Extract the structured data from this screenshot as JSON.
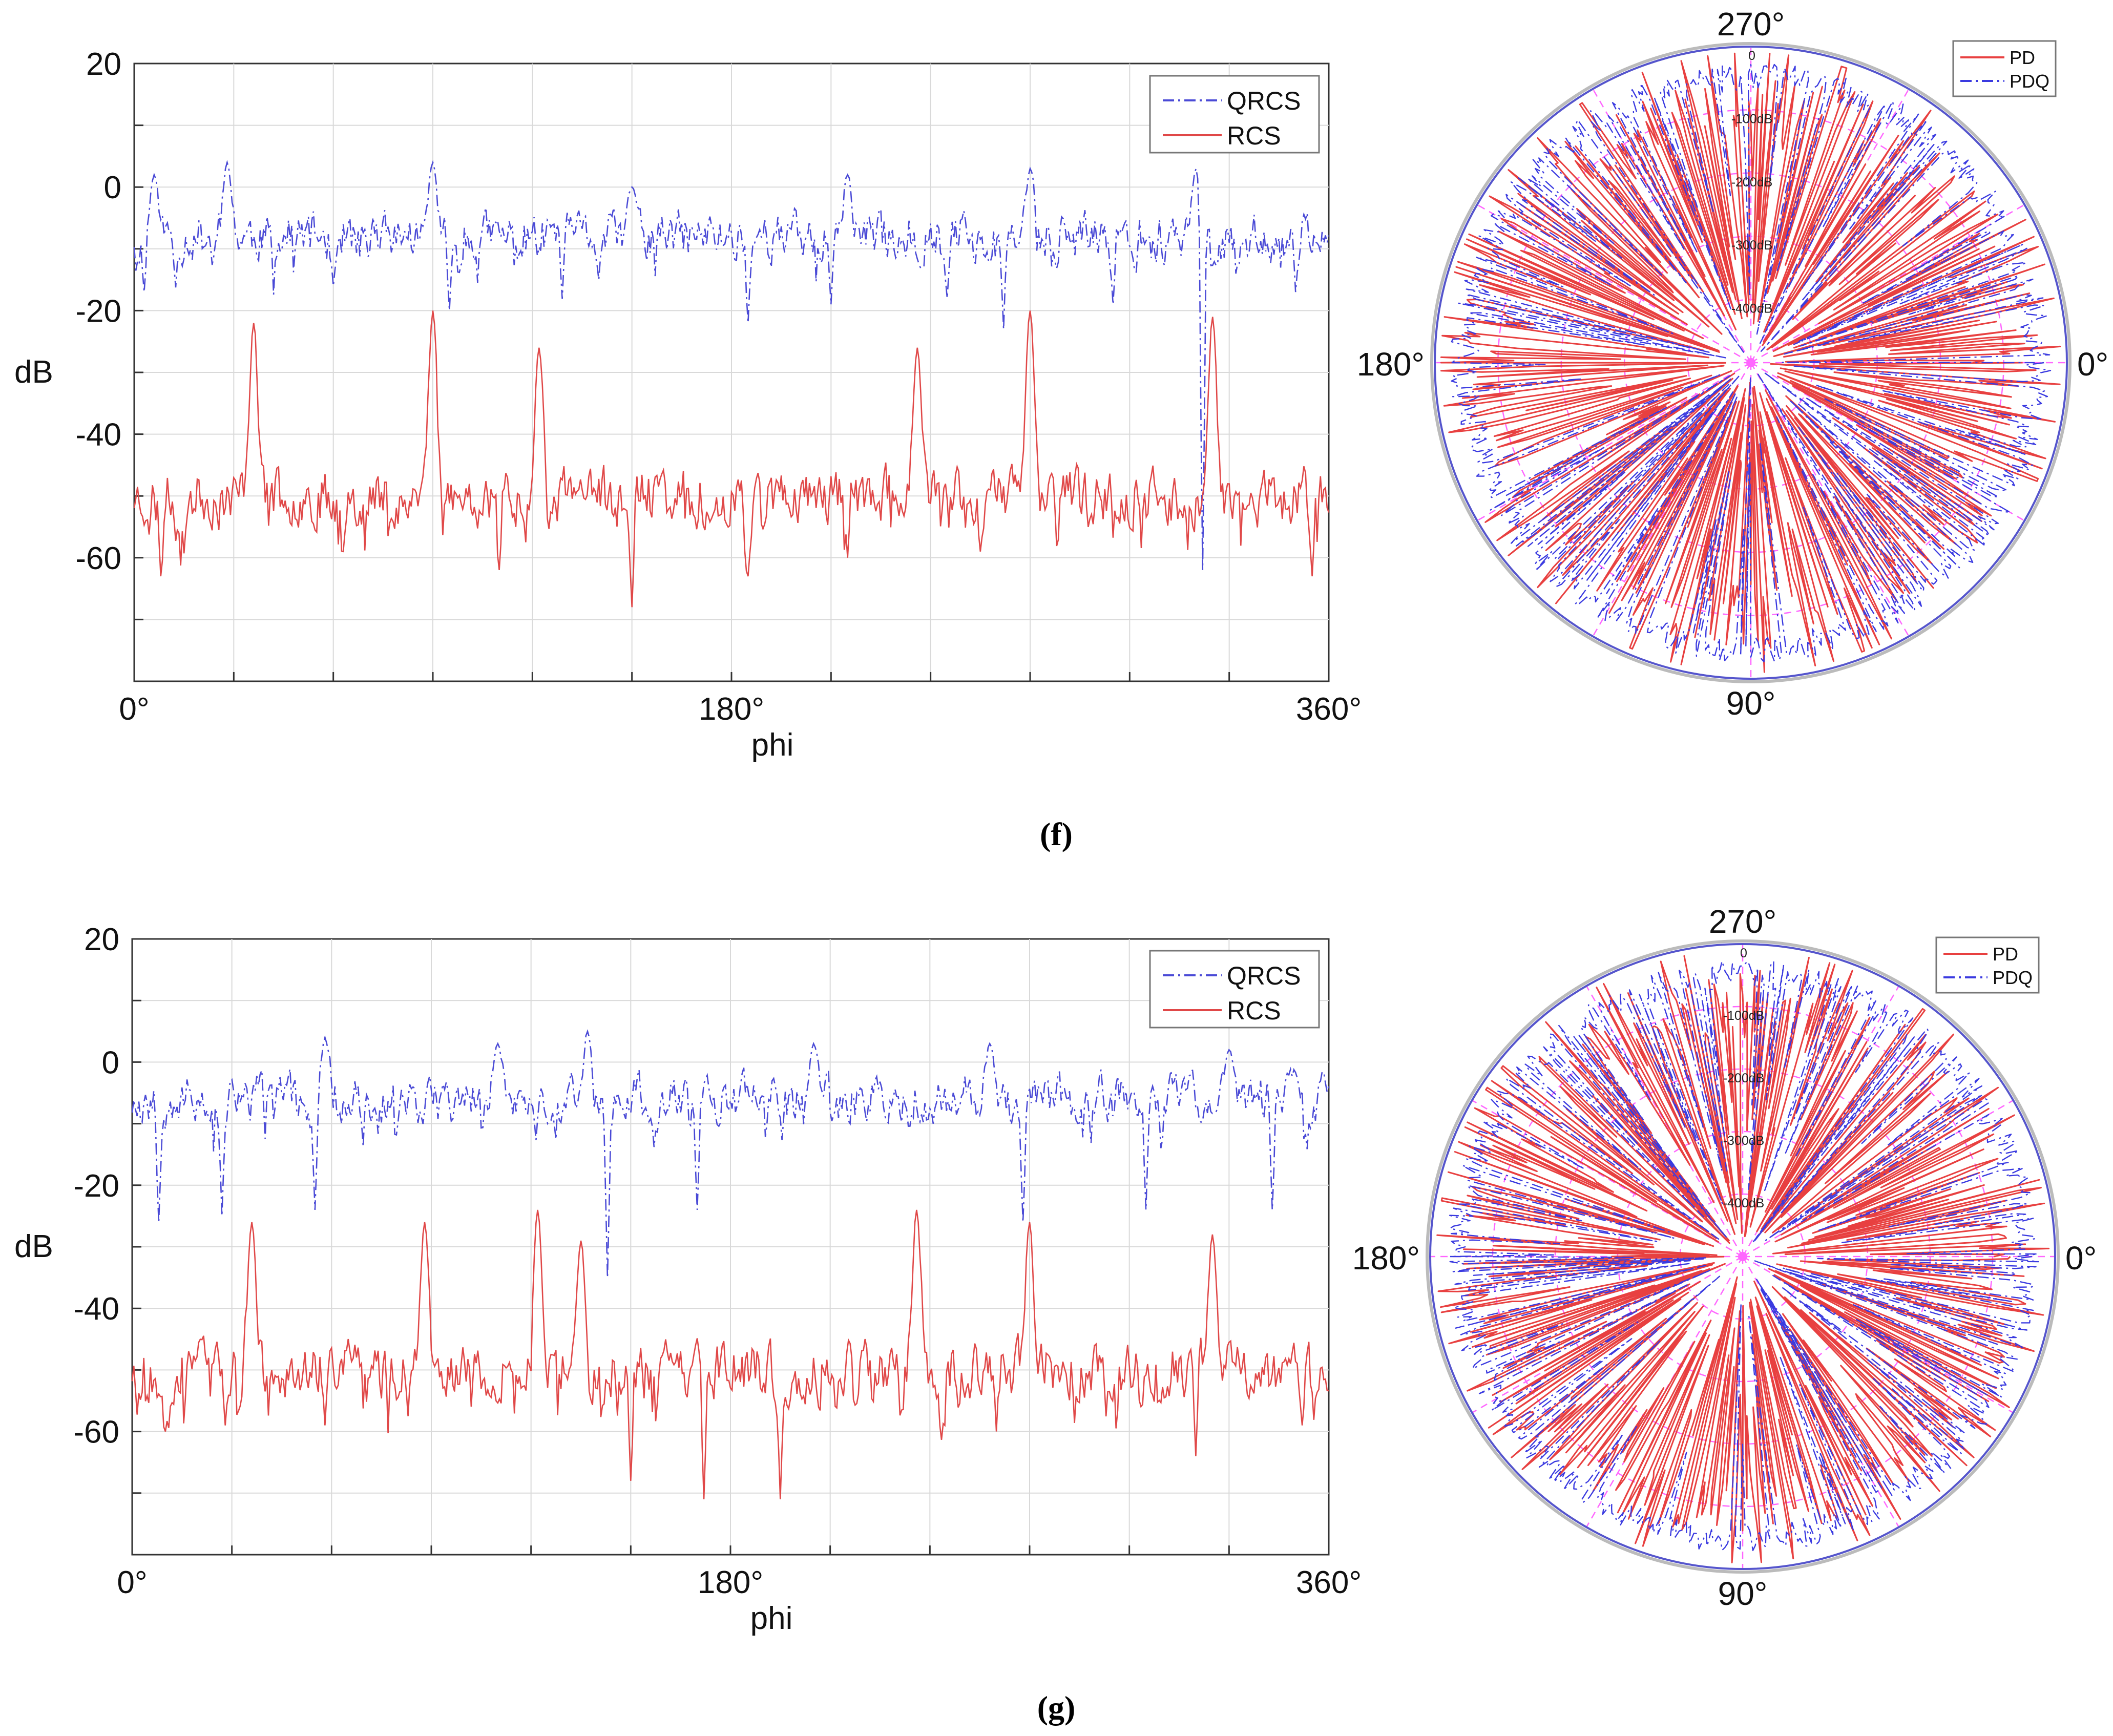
{
  "colors": {
    "qrcs": "#4a4ad6",
    "rcs": "#e04848",
    "pd": "#e84040",
    "pdq": "#3a3ae0",
    "grid": "#d9d9d9",
    "polar_grid": "#ff66ff",
    "axis": "#333333"
  },
  "panels": [
    {
      "caption": "(f)",
      "chart_data": [
        {
          "type": "line",
          "xlabel": "phi",
          "ylabel": "dB",
          "xlim": [
            0,
            360
          ],
          "ylim": [
            -80,
            20
          ],
          "x_ticks": [
            0,
            180,
            360
          ],
          "x_tick_labels": [
            "0°",
            "180°",
            "360°"
          ],
          "y_ticks": [
            20,
            0,
            -20,
            -40,
            -60
          ],
          "y_tick_labels": [
            "20",
            "0",
            "-20",
            "-40",
            "-60"
          ],
          "x_grid_step": 30,
          "y_grid_step": 10,
          "grid": true,
          "legend_position": "top-right",
          "series": [
            {
              "name": "QRCS",
              "style": "dashdot",
              "color_key": "qrcs",
              "seed": 11,
              "base": -8,
              "spread": 6,
              "dips": [
                [
                  3,
                  -17
                ],
                [
                  60,
                  -16
                ],
                [
                  95,
                  -20
                ],
                [
                  140,
                  -15
                ],
                [
                  185,
                  -22
                ],
                [
                  210,
                  -19
                ],
                [
                  245,
                  -18
                ],
                [
                  262,
                  -23
                ],
                [
                  295,
                  -19
                ],
                [
                  322,
                  -62
                ],
                [
                  350,
                  -17
                ]
              ],
              "peaks": [
                [
                  6,
                  2
                ],
                [
                  28,
                  4
                ],
                [
                  90,
                  4
                ],
                [
                  150,
                  0
                ],
                [
                  215,
                  2
                ],
                [
                  270,
                  3
                ],
                [
                  320,
                  3
                ]
              ]
            },
            {
              "name": "RCS",
              "style": "solid",
              "color_key": "rcs",
              "seed": 23,
              "base": -50,
              "spread": 7,
              "dips": [
                [
                  8,
                  -63
                ],
                [
                  63,
                  -59
                ],
                [
                  110,
                  -62
                ],
                [
                  150,
                  -68
                ],
                [
                  185,
                  -63
                ],
                [
                  215,
                  -60
                ],
                [
                  255,
                  -59
                ],
                [
                  355,
                  -63
                ]
              ],
              "peaks": [
                [
                  36,
                  -22
                ],
                [
                  90,
                  -20
                ],
                [
                  122,
                  -26
                ],
                [
                  236,
                  -26
                ],
                [
                  270,
                  -20
                ],
                [
                  325,
                  -21
                ]
              ]
            }
          ]
        },
        {
          "type": "polar",
          "angle_labels": [
            "270°",
            "0°",
            "90°",
            "180°"
          ],
          "radial_labels": [
            "0",
            "-100dB",
            "-200dB",
            "-300dB",
            "-400dB"
          ],
          "rlim": [
            -500,
            0
          ],
          "legend_position": "top-right",
          "series": [
            {
              "name": "PD",
              "style": "solid",
              "color_key": "pd",
              "seed": 37,
              "kind": "pd"
            },
            {
              "name": "PDQ",
              "style": "dashdot",
              "color_key": "pdq",
              "seed": 41,
              "kind": "pdq"
            }
          ]
        }
      ]
    },
    {
      "caption": "(g)",
      "chart_data": [
        {
          "type": "line",
          "xlabel": "phi",
          "ylabel": "dB",
          "xlim": [
            0,
            360
          ],
          "ylim": [
            -80,
            20
          ],
          "x_ticks": [
            0,
            180,
            360
          ],
          "x_tick_labels": [
            "0°",
            "180°",
            "360°"
          ],
          "y_ticks": [
            20,
            0,
            -20,
            -40,
            -60
          ],
          "y_tick_labels": [
            "20",
            "0",
            "-20",
            "-40",
            "-60"
          ],
          "x_grid_step": 30,
          "y_grid_step": 10,
          "grid": true,
          "legend_position": "top-right",
          "series": [
            {
              "name": "QRCS",
              "style": "dashdot",
              "color_key": "qrcs",
              "seed": 53,
              "base": -6,
              "spread": 6,
              "dips": [
                [
                  8,
                  -26
                ],
                [
                  27,
                  -25
                ],
                [
                  55,
                  -24
                ],
                [
                  143,
                  -35
                ],
                [
                  170,
                  -24
                ],
                [
                  268,
                  -26
                ],
                [
                  305,
                  -24
                ],
                [
                  343,
                  -24
                ]
              ],
              "peaks": [
                [
                  58,
                  4
                ],
                [
                  110,
                  3
                ],
                [
                  137,
                  5
                ],
                [
                  205,
                  3
                ],
                [
                  258,
                  3
                ],
                [
                  330,
                  2
                ]
              ]
            },
            {
              "name": "RCS",
              "style": "solid",
              "color_key": "rcs",
              "seed": 67,
              "base": -50,
              "spread": 7,
              "dips": [
                [
                  10,
                  -60
                ],
                [
                  28,
                  -59
                ],
                [
                  58,
                  -59
                ],
                [
                  150,
                  -68
                ],
                [
                  172,
                  -71
                ],
                [
                  195,
                  -71
                ],
                [
                  260,
                  -60
                ],
                [
                  320,
                  -64
                ],
                [
                  352,
                  -59
                ]
              ],
              "peaks": [
                [
                  36,
                  -26
                ],
                [
                  88,
                  -26
                ],
                [
                  122,
                  -24
                ],
                [
                  135,
                  -29
                ],
                [
                  236,
                  -24
                ],
                [
                  270,
                  -26
                ],
                [
                  325,
                  -28
                ]
              ]
            }
          ]
        },
        {
          "type": "polar",
          "angle_labels": [
            "270°",
            "0°",
            "90°",
            "180°"
          ],
          "radial_labels": [
            "0",
            "-100dB",
            "-200dB",
            "-300dB",
            "-400dB"
          ],
          "rlim": [
            -500,
            0
          ],
          "legend_position": "top-right",
          "series": [
            {
              "name": "PD",
              "style": "solid",
              "color_key": "pd",
              "seed": 71,
              "kind": "pd"
            },
            {
              "name": "PDQ",
              "style": "dashdot",
              "color_key": "pdq",
              "seed": 79,
              "kind": "pdq"
            }
          ]
        }
      ]
    }
  ]
}
